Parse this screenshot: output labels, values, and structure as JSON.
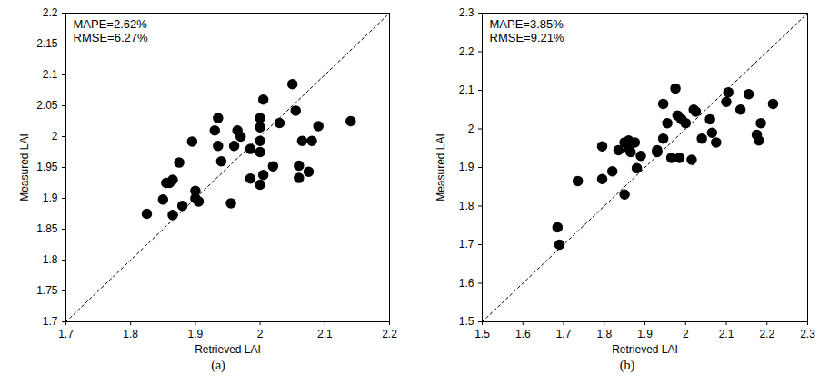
{
  "chart_data": [
    {
      "type": "scatter",
      "caption": "(a)",
      "x_label": "Retrieved LAI",
      "y_label": "Measured LAI",
      "annotations": [
        "MAPE=2.62%",
        "RMSE=6.27%"
      ],
      "color": "#000000",
      "marker": "circle",
      "grid": false,
      "xlim": [
        1.7,
        2.2
      ],
      "xticks": [
        1.7,
        1.8,
        1.9,
        2,
        2.1,
        2.2
      ],
      "ylim": [
        1.7,
        2.2
      ],
      "yticks": [
        1.7,
        1.75,
        1.8,
        1.85,
        1.9,
        1.95,
        2,
        2.05,
        2.1,
        2.15,
        2.2
      ],
      "x": [
        1.825,
        1.85,
        1.855,
        1.86,
        1.865,
        1.865,
        1.875,
        1.88,
        1.895,
        1.9,
        1.9,
        1.905,
        1.93,
        1.935,
        1.935,
        1.94,
        1.955,
        1.96,
        1.965,
        1.97,
        1.985,
        1.985,
        2.0,
        2.0,
        2.0,
        2.0,
        2.0,
        2.005,
        2.005,
        2.02,
        2.03,
        2.05,
        2.055,
        2.06,
        2.06,
        2.065,
        2.075,
        2.08,
        2.09,
        2.14
      ],
      "values": [
        1.875,
        1.898,
        1.925,
        1.925,
        1.93,
        1.873,
        1.958,
        1.888,
        1.992,
        1.912,
        1.9,
        1.895,
        2.01,
        2.03,
        1.985,
        1.96,
        1.892,
        1.985,
        2.01,
        2.0,
        1.932,
        1.98,
        2.03,
        2.015,
        1.993,
        1.975,
        1.922,
        2.06,
        1.938,
        1.952,
        2.022,
        2.085,
        2.042,
        1.953,
        1.933,
        1.993,
        1.943,
        1.993,
        2.017,
        2.025
      ]
    },
    {
      "type": "scatter",
      "caption": "(b)",
      "x_label": "Retrieved LAI",
      "y_label": "Measured LAI",
      "annotations": [
        "MAPE=3.85%",
        "RMSE=9.21%"
      ],
      "color": "#000000",
      "marker": "circle",
      "grid": false,
      "xlim": [
        1.5,
        2.3
      ],
      "xticks": [
        1.5,
        1.6,
        1.7,
        1.8,
        1.9,
        2,
        2.1,
        2.2,
        2.3
      ],
      "ylim": [
        1.5,
        2.3
      ],
      "yticks": [
        1.5,
        1.6,
        1.7,
        1.8,
        1.9,
        2,
        2.1,
        2.2,
        2.3
      ],
      "x": [
        1.685,
        1.69,
        1.735,
        1.795,
        1.795,
        1.82,
        1.835,
        1.85,
        1.85,
        1.86,
        1.86,
        1.865,
        1.875,
        1.88,
        1.89,
        1.93,
        1.93,
        1.945,
        1.945,
        1.955,
        1.965,
        1.975,
        1.98,
        1.985,
        1.99,
        2.0,
        2.015,
        2.02,
        2.025,
        2.04,
        2.06,
        2.065,
        2.075,
        2.1,
        2.105,
        2.135,
        2.155,
        2.175,
        2.18,
        2.185,
        2.215
      ],
      "values": [
        1.745,
        1.7,
        1.865,
        1.955,
        1.87,
        1.89,
        1.945,
        1.83,
        1.965,
        1.97,
        1.95,
        1.94,
        1.965,
        1.898,
        1.93,
        1.94,
        1.945,
        1.975,
        2.065,
        2.015,
        1.925,
        2.105,
        2.035,
        1.925,
        2.025,
        2.015,
        1.92,
        2.05,
        2.045,
        1.975,
        2.025,
        1.99,
        1.965,
        2.07,
        2.095,
        2.05,
        2.09,
        1.985,
        1.97,
        2.015,
        2.065
      ]
    }
  ]
}
